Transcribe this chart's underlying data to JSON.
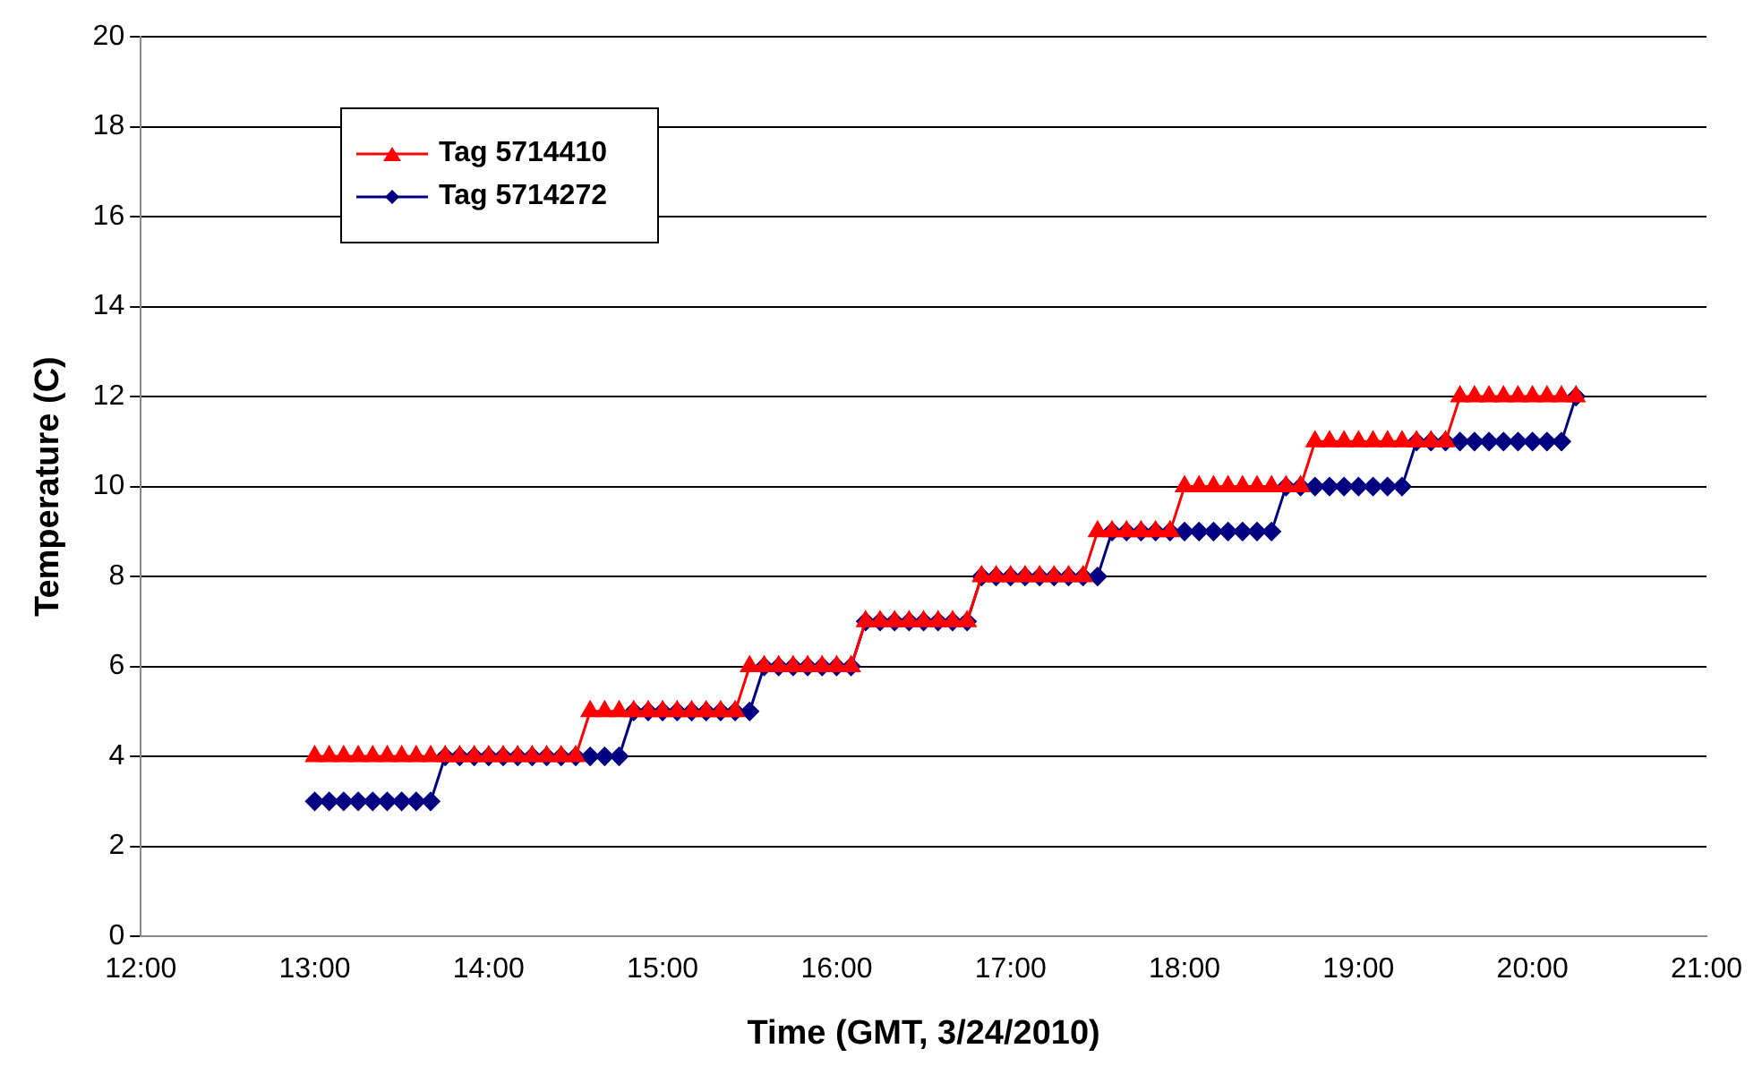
{
  "chart_data": {
    "type": "line",
    "xlabel": "Time (GMT, 3/24/2010)",
    "ylabel": "Temperature (C)",
    "x": [
      13,
      13.0833,
      13.1667,
      13.25,
      13.3333,
      13.4167,
      13.5,
      13.5833,
      13.6667,
      13.75,
      13.8333,
      13.9167,
      14,
      14.0833,
      14.1667,
      14.25,
      14.3333,
      14.4167,
      14.5,
      14.5833,
      14.6667,
      14.75,
      14.8333,
      14.9167,
      15,
      15.0833,
      15.1667,
      15.25,
      15.3333,
      15.4167,
      15.5,
      15.5833,
      15.6667,
      15.75,
      15.8333,
      15.9167,
      16,
      16.0833,
      16.1667,
      16.25,
      16.3333,
      16.4167,
      16.5,
      16.5833,
      16.6667,
      16.75,
      16.8333,
      16.9167,
      17,
      17.0833,
      17.1667,
      17.25,
      17.3333,
      17.4167,
      17.5,
      17.5833,
      17.6667,
      17.75,
      17.8333,
      17.9167,
      18,
      18.0833,
      18.1667,
      18.25,
      18.3333,
      18.4167,
      18.5,
      18.5833,
      18.6667,
      18.75,
      18.8333,
      18.9167,
      19,
      19.0833,
      19.1667,
      19.25,
      19.3333,
      19.4167,
      19.5,
      19.5833,
      19.6667,
      19.75,
      19.8333,
      19.9167,
      20,
      20.0833,
      20.1667,
      20.25
    ],
    "series": [
      {
        "name": "Tag 5714410",
        "color": "#ff0000",
        "marker": "triangle",
        "values": [
          4,
          4,
          4,
          4,
          4,
          4,
          4,
          4,
          4,
          4,
          4,
          4,
          4,
          4,
          4,
          4,
          4,
          4,
          4,
          5,
          5,
          5,
          5,
          5,
          5,
          5,
          5,
          5,
          5,
          5,
          6,
          6,
          6,
          6,
          6,
          6,
          6,
          6,
          7,
          7,
          7,
          7,
          7,
          7,
          7,
          7,
          8,
          8,
          8,
          8,
          8,
          8,
          8,
          8,
          9,
          9,
          9,
          9,
          9,
          9,
          10,
          10,
          10,
          10,
          10,
          10,
          10,
          10,
          10,
          11,
          11,
          11,
          11,
          11,
          11,
          11,
          11,
          11,
          11,
          12,
          12,
          12,
          12,
          12,
          12,
          12,
          12,
          12
        ]
      },
      {
        "name": "Tag 5714272",
        "color": "#000080",
        "marker": "diamond",
        "values": [
          3,
          3,
          3,
          3,
          3,
          3,
          3,
          3,
          3,
          4,
          4,
          4,
          4,
          4,
          4,
          4,
          4,
          4,
          4,
          4,
          4,
          4,
          5,
          5,
          5,
          5,
          5,
          5,
          5,
          5,
          5,
          6,
          6,
          6,
          6,
          6,
          6,
          6,
          7,
          7,
          7,
          7,
          7,
          7,
          7,
          7,
          8,
          8,
          8,
          8,
          8,
          8,
          8,
          8,
          8,
          9,
          9,
          9,
          9,
          9,
          9,
          9,
          9,
          9,
          9,
          9,
          9,
          10,
          10,
          10,
          10,
          10,
          10,
          10,
          10,
          10,
          11,
          11,
          11,
          11,
          11,
          11,
          11,
          11,
          11,
          11,
          11,
          12
        ]
      }
    ],
    "xlim": [
      12,
      21
    ],
    "xticks": [
      {
        "value": 12,
        "label": "12:00"
      },
      {
        "value": 13,
        "label": "13:00"
      },
      {
        "value": 14,
        "label": "14:00"
      },
      {
        "value": 15,
        "label": "15:00"
      },
      {
        "value": 16,
        "label": "16:00"
      },
      {
        "value": 17,
        "label": "17:00"
      },
      {
        "value": 18,
        "label": "18:00"
      },
      {
        "value": 19,
        "label": "19:00"
      },
      {
        "value": 20,
        "label": "20:00"
      },
      {
        "value": 21,
        "label": "21:00"
      }
    ],
    "ylim": [
      0,
      20
    ],
    "yticks": [
      0,
      2,
      4,
      6,
      8,
      10,
      12,
      14,
      16,
      18,
      20
    ],
    "grid": "y",
    "legend": "top left"
  }
}
